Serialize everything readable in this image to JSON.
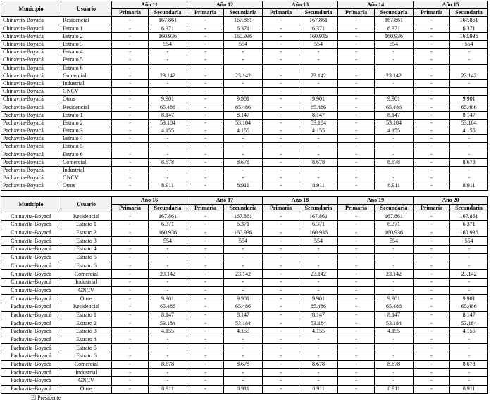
{
  "headers": {
    "municipio": "Municipio",
    "usuario": "Usuario",
    "primaria": "Primaria",
    "secundaria": "Secundaria"
  },
  "tables": [
    {
      "years": [
        "Año 11",
        "Año 12",
        "Año 13",
        "Año 14",
        "Año 15"
      ],
      "rows": [
        [
          "Chinavita-Boyacá",
          "Residencial",
          "-",
          "167.861",
          "-",
          "167.861",
          "-",
          "167.861",
          "-",
          "167.861",
          "-",
          "167.861"
        ],
        [
          "Chinavita-Boyacá",
          "Estrato 1",
          "-",
          "6.371",
          "-",
          "6.371",
          "-",
          "6.371",
          "-",
          "6.371",
          "-",
          "6.371"
        ],
        [
          "Chinavita-Boyacá",
          "Estrato 2",
          "-",
          "160.936",
          "-",
          "160.936",
          "-",
          "160.936",
          "-",
          "160.936",
          "-",
          "160.936"
        ],
        [
          "Chinavita-Boyacá",
          "Estrato 3",
          "-",
          "554",
          "-",
          "554",
          "-",
          "554",
          "-",
          "554",
          "-",
          "554"
        ],
        [
          "Chinavita-Boyacá",
          "Estrato 4",
          "-",
          "-",
          "-",
          "-",
          "-",
          "-",
          "-",
          "-",
          "-",
          "-"
        ],
        [
          "Chinavita-Boyacá",
          "Estrato 5",
          "-",
          "-",
          "-",
          "-",
          "-",
          "-",
          "-",
          "-",
          "-",
          "-"
        ],
        [
          "Chinavita-Boyacá",
          "Estrato 6",
          "-",
          "-",
          "-",
          "-",
          "-",
          "-",
          "-",
          "-",
          "-",
          "-"
        ],
        [
          "Chinavita-Boyacá",
          "Comercial",
          "-",
          "23.142",
          "-",
          "23.142",
          "-",
          "23.142",
          "-",
          "23.142",
          "-",
          "23.142"
        ],
        [
          "Chinavita-Boyacá",
          "Industrial",
          "-",
          "-",
          "-",
          "-",
          "-",
          "-",
          "-",
          "-",
          "-",
          "-"
        ],
        [
          "Chinavita-Boyacá",
          "GNCV",
          "-",
          "-",
          "-",
          "-",
          "-",
          "-",
          "-",
          "-",
          "-",
          "-"
        ],
        [
          "Chinavita-Boyacá",
          "Otros",
          "-",
          "9.901",
          "-",
          "9.901",
          "-",
          "9.901",
          "-",
          "9.901",
          "-",
          "9.901"
        ],
        [
          "Pachavita-Boyacá",
          "Residencial",
          "-",
          "65.486",
          "-",
          "65.486",
          "-",
          "65.486",
          "-",
          "65.486",
          "-",
          "65.486"
        ],
        [
          "Pachavita-Boyacá",
          "Estrato 1",
          "-",
          "8.147",
          "-",
          "8.147",
          "-",
          "8.147",
          "-",
          "8.147",
          "-",
          "8.147"
        ],
        [
          "Pachavita-Boyacá",
          "Estrato 2",
          "-",
          "53.184",
          "-",
          "53.184",
          "-",
          "53.184",
          "-",
          "53.184",
          "-",
          "53.184"
        ],
        [
          "Pachavita-Boyacá",
          "Estrato 3",
          "-",
          "4.155",
          "-",
          "4.155",
          "-",
          "4.155",
          "-",
          "4.155",
          "-",
          "4.155"
        ],
        [
          "Pachavita-Boyacá",
          "Estrato 4",
          "-",
          "-",
          "-",
          "-",
          "-",
          "-",
          "-",
          "-",
          "-",
          "-"
        ],
        [
          "Pachavita-Boyacá",
          "Estrato 5",
          "-",
          "-",
          "-",
          "-",
          "-",
          "-",
          "-",
          "-",
          "-",
          "-"
        ],
        [
          "Pachavita-Boyacá",
          "Estrato 6",
          "-",
          "-",
          "-",
          "-",
          "-",
          "-",
          "-",
          "-",
          "-",
          "-"
        ],
        [
          "Pachavita-Boyacá",
          "Comercial",
          "-",
          "8.678",
          "-",
          "8.678",
          "-",
          "8.678",
          "-",
          "8.678",
          "-",
          "8.678"
        ],
        [
          "Pachavita-Boyacá",
          "Industrial",
          "-",
          "-",
          "-",
          "-",
          "-",
          "-",
          "-",
          "-",
          "-",
          "-"
        ],
        [
          "Pachavita-Boyacá",
          "GNCV",
          "-",
          "-",
          "-",
          "-",
          "-",
          "-",
          "-",
          "-",
          "-",
          "-"
        ],
        [
          "Pachavita-Boyacá",
          "Otros",
          "-",
          "8.911",
          "-",
          "8.911",
          "-",
          "8.911",
          "-",
          "8.911",
          "-",
          "8.911"
        ]
      ]
    },
    {
      "years": [
        "Año 16",
        "Año 17",
        "Año 18",
        "Año 19",
        "Año 20"
      ],
      "rows": [
        [
          "Chinavita-Boyacá",
          "Residencial",
          "-",
          "167.861",
          "-",
          "167.861",
          "-",
          "167.861",
          "-",
          "167.861",
          "-",
          "167.861"
        ],
        [
          "Chinavita-Boyacá",
          "Estrato 1",
          "-",
          "6.371",
          "-",
          "6.371",
          "-",
          "6.371",
          "-",
          "6.371",
          "-",
          "6.371"
        ],
        [
          "Chinavita-Boyacá",
          "Estrato 2",
          "-",
          "160.936",
          "-",
          "160.936",
          "-",
          "160.936",
          "-",
          "160.936",
          "-",
          "160.936"
        ],
        [
          "Chinavita-Boyacá",
          "Estrato 3",
          "-",
          "554",
          "-",
          "554",
          "-",
          "554",
          "-",
          "554",
          "-",
          "554"
        ],
        [
          "Chinavita-Boyacá",
          "Estrato 4",
          "-",
          "-",
          "-",
          "-",
          "-",
          "-",
          "-",
          "-",
          "-",
          "-"
        ],
        [
          "Chinavita-Boyacá",
          "Estrato 5",
          "-",
          "-",
          "-",
          "-",
          "-",
          "-",
          "-",
          "-",
          "-",
          "-"
        ],
        [
          "Chinavita-Boyacá",
          "Estrato 6",
          "-",
          "-",
          "-",
          "-",
          "-",
          "-",
          "-",
          "-",
          "-",
          "-"
        ],
        [
          "Chinavita-Boyacá",
          "Comercial",
          "-",
          "23.142",
          "-",
          "23.142",
          "-",
          "23.142",
          "-",
          "23.142",
          "-",
          "23.142"
        ],
        [
          "Chinavita-Boyacá",
          "Industrial",
          "-",
          "-",
          "-",
          "-",
          "-",
          "-",
          "-",
          "-",
          "-",
          "-"
        ],
        [
          "Chinavita-Boyacá",
          "GNCV",
          "-",
          "-",
          "-",
          "-",
          "-",
          "-",
          "-",
          "-",
          "-",
          "-"
        ],
        [
          "Chinavita-Boyacá",
          "Otros",
          "-",
          "9.901",
          "-",
          "9.901",
          "-",
          "9.901",
          "-",
          "9.901",
          "-",
          "9.901"
        ],
        [
          "Pachavita-Boyacá",
          "Residencial",
          "-",
          "65.486",
          "-",
          "65.486",
          "-",
          "65.486",
          "-",
          "65.486",
          "-",
          "65.486"
        ],
        [
          "Pachavita-Boyacá",
          "Estrato 1",
          "-",
          "8.147",
          "-",
          "8.147",
          "-",
          "8.147",
          "-",
          "8.147",
          "-",
          "8.147"
        ],
        [
          "Pachavita-Boyacá",
          "Estrato 2",
          "-",
          "53.184",
          "-",
          "53.184",
          "-",
          "53.184",
          "-",
          "53.184",
          "-",
          "53.184"
        ],
        [
          "Pachavita-Boyacá",
          "Estrato 3",
          "-",
          "4.155",
          "-",
          "4.155",
          "-",
          "4.155",
          "-",
          "4.155",
          "-",
          "4.155"
        ],
        [
          "Pachavita-Boyacá",
          "Estrato 4",
          "-",
          "-",
          "-",
          "-",
          "-",
          "-",
          "-",
          "-",
          "-",
          "-"
        ],
        [
          "Pachavita-Boyacá",
          "Estrato 5",
          "-",
          "-",
          "-",
          "-",
          "-",
          "-",
          "-",
          "-",
          "-",
          "-"
        ],
        [
          "Pachavita-Boyacá",
          "Estrato 6",
          "-",
          "-",
          "-",
          "-",
          "-",
          "-",
          "-",
          "-",
          "-",
          "-"
        ],
        [
          "Pachavita-Boyacá",
          "Comercial",
          "-",
          "8.678",
          "-",
          "8.678",
          "-",
          "8.678",
          "-",
          "8.678",
          "-",
          "8.678"
        ],
        [
          "Pachavita-Boyacá",
          "Industrial",
          "-",
          "-",
          "-",
          "-",
          "-",
          "-",
          "-",
          "-",
          "-",
          "-"
        ],
        [
          "Pachavita-Boyacá",
          "GNCV",
          "-",
          "-",
          "-",
          "-",
          "-",
          "-",
          "-",
          "-",
          "-",
          "-"
        ],
        [
          "Pachavita-Boyacá",
          "Otros",
          "-",
          "8.911",
          "-",
          "8.911",
          "-",
          "8.911",
          "-",
          "8.911",
          "-",
          "8.911"
        ]
      ]
    }
  ],
  "footer": "El Presidente"
}
